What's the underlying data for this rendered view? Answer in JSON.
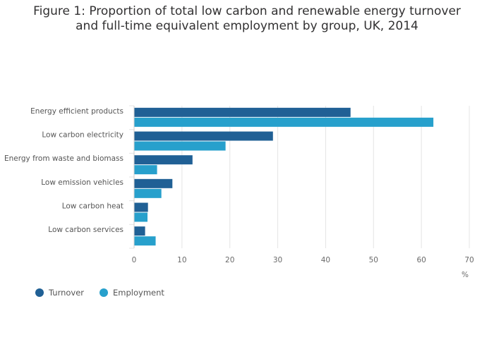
{
  "chart_data": {
    "type": "bar",
    "orientation": "horizontal",
    "title_lines": [
      "Figure 1: Proportion of total low carbon and renewable energy turnover",
      "and full-time equivalent employment by group, UK, 2014"
    ],
    "categories": [
      "Energy efficient products",
      "Low carbon electricity",
      "Energy from waste and biomass",
      "Low emission vehicles",
      "Low carbon heat",
      "Low carbon services"
    ],
    "series": [
      {
        "name": "Turnover",
        "color": "#206095",
        "values": [
          45.2,
          29.0,
          12.2,
          8.0,
          2.9,
          2.3
        ]
      },
      {
        "name": "Employment",
        "color": "#27a0cc",
        "values": [
          62.5,
          19.1,
          4.8,
          5.7,
          2.8,
          4.5
        ]
      }
    ],
    "xlim": [
      0,
      70
    ],
    "xticks": [
      0,
      10,
      20,
      30,
      40,
      50,
      60,
      70
    ],
    "xlabel": "%",
    "grid": true,
    "legend_position": "bottom-left"
  }
}
